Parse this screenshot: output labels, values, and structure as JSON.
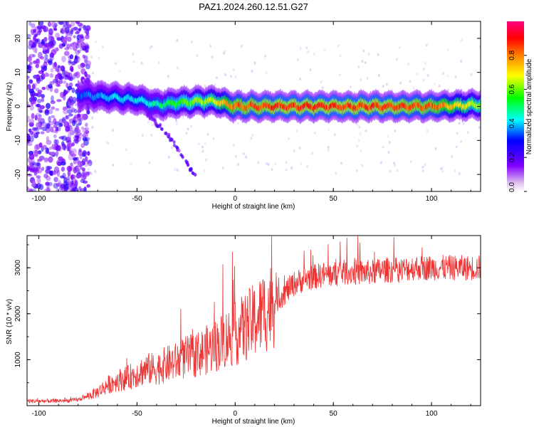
{
  "figure_title": "PAZ1.2024.260.12.51.G27",
  "chart_data": [
    {
      "type": "heatmap",
      "title": "PAZ1.2024.260.12.51.G27",
      "xlabel": "Height of straight line (km)",
      "ylabel": "Frequency (Hz)",
      "xlim": [
        -106,
        125
      ],
      "ylim": [
        -25,
        25
      ],
      "xticks": [
        -100,
        -50,
        0,
        50,
        100
      ],
      "yticks": [
        -20,
        -10,
        0,
        10,
        20
      ],
      "colorbar": {
        "label": "Normalized spectral amplitude",
        "range": [
          0,
          1
        ],
        "ticks": [
          0.0,
          0.2,
          0.4,
          0.6,
          0.8
        ],
        "colormap": [
          "#e0c0f0",
          "#8000ff",
          "#0000ff",
          "#00ffff",
          "#00ff00",
          "#ffff00",
          "#ff8000",
          "#ff0000",
          "#ff0080"
        ]
      },
      "ridge": {
        "description_points_x": [
          -80,
          -70,
          -60,
          -50,
          -40,
          -30,
          -20,
          -10,
          0,
          25,
          50,
          75,
          100,
          125
        ],
        "frequency_hz": [
          3.5,
          3.0,
          2.5,
          2.0,
          0.5,
          1.0,
          1.5,
          1.5,
          0.0,
          0.0,
          0.0,
          0.0,
          0.0,
          0.5
        ],
        "peak_amplitude": [
          0.3,
          0.35,
          0.4,
          0.4,
          0.45,
          0.55,
          0.6,
          0.65,
          0.85,
          0.9,
          0.9,
          0.9,
          0.85,
          0.6
        ]
      },
      "noise_region_x": [
        -106,
        -80
      ],
      "secondary_streak": {
        "x": [
          -45,
          -40,
          -35,
          -30,
          -25,
          -20
        ],
        "frequency_hz": [
          -2,
          -5,
          -8,
          -12,
          -16,
          -21
        ]
      }
    },
    {
      "type": "line",
      "xlabel": "Height of straight line (km)",
      "ylabel": "SNR (10 * v/v)",
      "xlim": [
        -106,
        125
      ],
      "ylim": [
        0,
        3700
      ],
      "xticks": [
        -100,
        -50,
        0,
        50,
        100
      ],
      "yticks": [
        1000,
        2000,
        3000
      ],
      "color": "#ee3333",
      "series": [
        {
          "x": [
            -106,
            -95,
            -85,
            -80,
            -75,
            -70,
            -65,
            -60,
            -55,
            -50,
            -45,
            -40,
            -35,
            -30,
            -25,
            -20,
            -15,
            -10,
            -5,
            0,
            5,
            10,
            15,
            20,
            25,
            30,
            35,
            40,
            45,
            50,
            55,
            60,
            65,
            70,
            75,
            80,
            85,
            90,
            95,
            100,
            105,
            110,
            115,
            120,
            125
          ],
          "values": [
            100,
            100,
            110,
            130,
            200,
            300,
            450,
            550,
            600,
            700,
            800,
            800,
            900,
            950,
            1050,
            1100,
            1200,
            1300,
            1450,
            1550,
            1700,
            1850,
            2050,
            2250,
            2450,
            2650,
            2750,
            2800,
            2850,
            2850,
            2900,
            2900,
            2900,
            2900,
            2950,
            2950,
            2950,
            3000,
            3000,
            3000,
            3000,
            3000,
            3000,
            3000,
            3000
          ]
        }
      ]
    }
  ]
}
